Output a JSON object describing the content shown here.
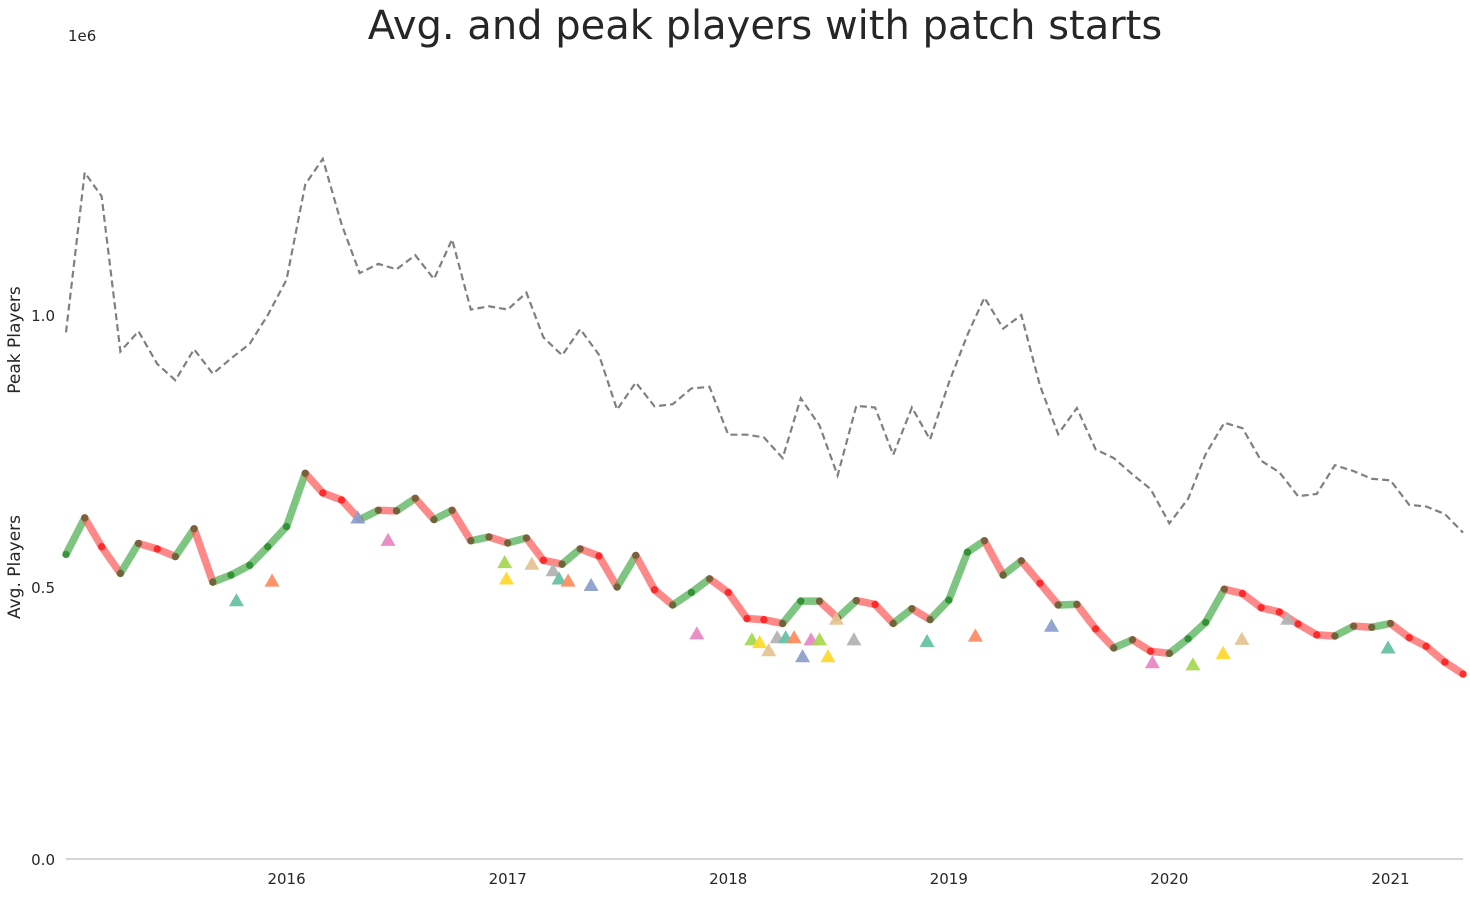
{
  "chart_data": {
    "type": "line",
    "title": "Avg. and peak players with patch starts",
    "ylabel_top": "Peak Players",
    "ylabel_bottom": "Avg. Players",
    "y_offset_label": "1e6",
    "ylim": [
      0,
      1500000
    ],
    "xlim": [
      "2015-01-01",
      "2021-05-01"
    ],
    "y_ticks": [
      {
        "value": 0,
        "label": "0.0"
      },
      {
        "value": 500000,
        "label": "0.5"
      },
      {
        "value": 1000000,
        "label": "1.0"
      }
    ],
    "x_ticks": [
      {
        "date": "2016-01-01",
        "label": "2016"
      },
      {
        "date": "2017-01-01",
        "label": "2017"
      },
      {
        "date": "2018-01-01",
        "label": "2018"
      },
      {
        "date": "2019-01-01",
        "label": "2019"
      },
      {
        "date": "2020-01-01",
        "label": "2020"
      },
      {
        "date": "2021-01-01",
        "label": "2021"
      }
    ],
    "grid": false,
    "colors": {
      "peak": "#808080",
      "increase": "#4caf50",
      "decrease": "#ff5a5a",
      "marker_up": "#2e8b2e",
      "marker_down": "#ff2020",
      "marker_mid": "#6b5a35"
    },
    "months": [
      "2015-01",
      "2015-02",
      "2015-03",
      "2015-04",
      "2015-05",
      "2015-06",
      "2015-07",
      "2015-08",
      "2015-09",
      "2015-10",
      "2015-11",
      "2015-12",
      "2016-01",
      "2016-02",
      "2016-03",
      "2016-04",
      "2016-05",
      "2016-06",
      "2016-07",
      "2016-08",
      "2016-09",
      "2016-10",
      "2016-11",
      "2016-12",
      "2017-01",
      "2017-02",
      "2017-03",
      "2017-04",
      "2017-05",
      "2017-06",
      "2017-07",
      "2017-08",
      "2017-09",
      "2017-10",
      "2017-11",
      "2017-12",
      "2018-01",
      "2018-02",
      "2018-03",
      "2018-04",
      "2018-05",
      "2018-06",
      "2018-07",
      "2018-08",
      "2018-09",
      "2018-10",
      "2018-11",
      "2018-12",
      "2019-01",
      "2019-02",
      "2019-03",
      "2019-04",
      "2019-05",
      "2019-06",
      "2019-07",
      "2019-08",
      "2019-09",
      "2019-10",
      "2019-11",
      "2019-12",
      "2020-01",
      "2020-02",
      "2020-03",
      "2020-04",
      "2020-05",
      "2020-06",
      "2020-07",
      "2020-08",
      "2020-09",
      "2020-10",
      "2020-11",
      "2020-12",
      "2021-01",
      "2021-02",
      "2021-03",
      "2021-04",
      "2021-05"
    ],
    "series": [
      {
        "key": "peak",
        "style": "dashed",
        "values": [
          968000,
          1262000,
          1218000,
          933000,
          970000,
          910000,
          880000,
          937000,
          892000,
          920000,
          947000,
          1000000,
          1065000,
          1240000,
          1287000,
          1167000,
          1077000,
          1094000,
          1084000,
          1110000,
          1066000,
          1139000,
          1010000,
          1016000,
          1010000,
          1041000,
          959000,
          926000,
          974000,
          927000,
          826000,
          876000,
          832000,
          836000,
          865000,
          868000,
          780000,
          780000,
          775000,
          737000,
          847000,
          797000,
          705000,
          833000,
          830000,
          743000,
          830000,
          771000,
          875000,
          964000,
          1032000,
          975000,
          1000000,
          870000,
          781000,
          829000,
          753000,
          737000,
          707000,
          680000,
          617000,
          662000,
          744000,
          802000,
          792000,
          732000,
          711000,
          667000,
          671000,
          724000,
          713000,
          699000,
          696000,
          651000,
          648000,
          634000,
          600000
        ]
      },
      {
        "key": "average",
        "style": "segments",
        "values": [
          560000,
          627000,
          574000,
          525000,
          580000,
          570000,
          556000,
          607000,
          509000,
          522000,
          540000,
          574000,
          611000,
          709000,
          673000,
          660000,
          624000,
          641000,
          640000,
          663000,
          624000,
          641000,
          585000,
          592000,
          581000,
          590000,
          549000,
          542000,
          570000,
          557000,
          500000,
          558000,
          495000,
          467000,
          490000,
          515000,
          490000,
          442000,
          440000,
          433000,
          474000,
          474000,
          443000,
          475000,
          468000,
          433000,
          460000,
          440000,
          476000,
          564000,
          585000,
          522000,
          548000,
          507000,
          467000,
          468000,
          423000,
          388000,
          403000,
          382000,
          378000,
          405000,
          435000,
          496000,
          488000,
          462000,
          454000,
          432000,
          412000,
          410000,
          428000,
          426000,
          433000,
          407000,
          391000,
          362000,
          340000
        ]
      }
    ],
    "patch_starts": [
      {
        "date": "2015-10-10",
        "y": 475000,
        "color": "#66c2a5"
      },
      {
        "date": "2015-12-08",
        "y": 511000,
        "color": "#fc8d62"
      },
      {
        "date": "2016-04-28",
        "y": 627000,
        "color": "#8da0cb"
      },
      {
        "date": "2016-06-17",
        "y": 586000,
        "color": "#e78ac3"
      },
      {
        "date": "2016-12-27",
        "y": 545000,
        "color": "#a6d854"
      },
      {
        "date": "2016-12-30",
        "y": 515000,
        "color": "#ffd92f"
      },
      {
        "date": "2017-02-10",
        "y": 542000,
        "color": "#e5c494"
      },
      {
        "date": "2017-03-17",
        "y": 530000,
        "color": "#b3b3b3"
      },
      {
        "date": "2017-03-27",
        "y": 515000,
        "color": "#66c2a5"
      },
      {
        "date": "2017-04-11",
        "y": 511000,
        "color": "#fc8d62"
      },
      {
        "date": "2017-05-19",
        "y": 503000,
        "color": "#8da0cb"
      },
      {
        "date": "2017-11-10",
        "y": 414000,
        "color": "#e78ac3"
      },
      {
        "date": "2018-02-09",
        "y": 403000,
        "color": "#a6d854"
      },
      {
        "date": "2018-02-22",
        "y": 398000,
        "color": "#ffd92f"
      },
      {
        "date": "2018-03-09",
        "y": 383000,
        "color": "#e5c494"
      },
      {
        "date": "2018-03-23",
        "y": 407000,
        "color": "#b3b3b3"
      },
      {
        "date": "2018-04-06",
        "y": 407000,
        "color": "#66c2a5"
      },
      {
        "date": "2018-04-20",
        "y": 407000,
        "color": "#fc8d62"
      },
      {
        "date": "2018-05-04",
        "y": 372000,
        "color": "#8da0cb"
      },
      {
        "date": "2018-05-18",
        "y": 403000,
        "color": "#e78ac3"
      },
      {
        "date": "2018-06-01",
        "y": 403000,
        "color": "#a6d854"
      },
      {
        "date": "2018-06-15",
        "y": 372000,
        "color": "#ffd92f"
      },
      {
        "date": "2018-06-29",
        "y": 441000,
        "color": "#e5c494"
      },
      {
        "date": "2018-07-28",
        "y": 403000,
        "color": "#b3b3b3"
      },
      {
        "date": "2018-11-26",
        "y": 400000,
        "color": "#66c2a5"
      },
      {
        "date": "2019-02-14",
        "y": 410000,
        "color": "#fc8d62"
      },
      {
        "date": "2019-06-20",
        "y": 428000,
        "color": "#8da0cb"
      },
      {
        "date": "2019-12-04",
        "y": 361000,
        "color": "#e78ac3"
      },
      {
        "date": "2020-02-09",
        "y": 357000,
        "color": "#a6d854"
      },
      {
        "date": "2020-03-30",
        "y": 378000,
        "color": "#ffd92f"
      },
      {
        "date": "2020-04-30",
        "y": 404000,
        "color": "#e5c494"
      },
      {
        "date": "2020-07-15",
        "y": 441000,
        "color": "#b3b3b3"
      },
      {
        "date": "2020-12-28",
        "y": 388000,
        "color": "#66c2a5"
      }
    ]
  }
}
